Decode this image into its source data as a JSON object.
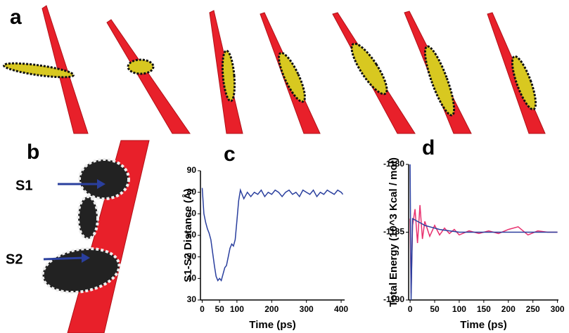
{
  "panel_labels": [
    "a",
    "b"
  ],
  "annotations": [
    "S1",
    "S2"
  ],
  "chart_data": [
    {
      "type": "line",
      "panel_label": "c",
      "ylabel": "S1-S2 Distance (Å)",
      "xlabel": "Time (ps)",
      "x": [
        0,
        5,
        10,
        15,
        20,
        25,
        30,
        35,
        40,
        45,
        50,
        55,
        60,
        65,
        70,
        75,
        80,
        85,
        90,
        95,
        100,
        105,
        110,
        120,
        130,
        140,
        150,
        160,
        170,
        180,
        190,
        200,
        210,
        220,
        230,
        240,
        250,
        260,
        270,
        280,
        290,
        300,
        310,
        320,
        330,
        340,
        350,
        360,
        370,
        380,
        390,
        400,
        405
      ],
      "series": [
        {
          "color": "#2a3f9e",
          "values": [
            82,
            70,
            66,
            63,
            61,
            58,
            52,
            46,
            41,
            39,
            40,
            39,
            42,
            45,
            46,
            50,
            54,
            56,
            55,
            58,
            67,
            76,
            81,
            77,
            80,
            78,
            80,
            79,
            81,
            78,
            80,
            79,
            81,
            80,
            78,
            80,
            81,
            79,
            80,
            78,
            81,
            80,
            79,
            81,
            78,
            80,
            79,
            81,
            80,
            79,
            81,
            80,
            79
          ]
        }
      ],
      "xlim": [
        -5,
        410
      ],
      "ylim": [
        30,
        90
      ],
      "xticks": [
        0,
        50,
        100,
        200,
        300,
        400
      ],
      "yticks": [
        30,
        40,
        50,
        60,
        70,
        80,
        90
      ]
    },
    {
      "type": "line",
      "panel_label": "d",
      "ylabel": "Total Energy (10^3 Kcal / mol)",
      "xlabel": "Time (ps)",
      "x": [
        0,
        2,
        5,
        10,
        15,
        20,
        25,
        30,
        40,
        50,
        60,
        70,
        80,
        90,
        100,
        120,
        140,
        160,
        180,
        200,
        220,
        240,
        260,
        280,
        300
      ],
      "series": [
        {
          "color": "#e8306e",
          "values": [
            -1184,
            -1189.5,
            -1184.5,
            -1183.3,
            -1185.8,
            -1183,
            -1185.5,
            -1184.2,
            -1185.3,
            -1184.5,
            -1185.2,
            -1184.7,
            -1185.1,
            -1184.8,
            -1185.2,
            -1184.9,
            -1185.1,
            -1184.9,
            -1185.1,
            -1184.8,
            -1184.6,
            -1185.2,
            -1184.9,
            -1185,
            -1185
          ]
        },
        {
          "color": "#2a3f9e",
          "values": [
            -1180,
            -1190,
            -1184,
            -1184.1,
            -1184.2,
            -1184.3,
            -1184.4,
            -1184.5,
            -1184.6,
            -1184.7,
            -1184.8,
            -1184.85,
            -1184.9,
            -1184.95,
            -1185,
            -1185,
            -1185,
            -1185,
            -1185,
            -1185,
            -1185,
            -1185,
            -1185,
            -1185,
            -1185
          ]
        }
      ],
      "xlim": [
        -3,
        302
      ],
      "ylim": [
        -1190,
        -1180
      ],
      "xticks": [
        0,
        50,
        100,
        150,
        200,
        250,
        300
      ],
      "yticks": [
        -1190,
        -1185,
        -1180
      ]
    }
  ]
}
